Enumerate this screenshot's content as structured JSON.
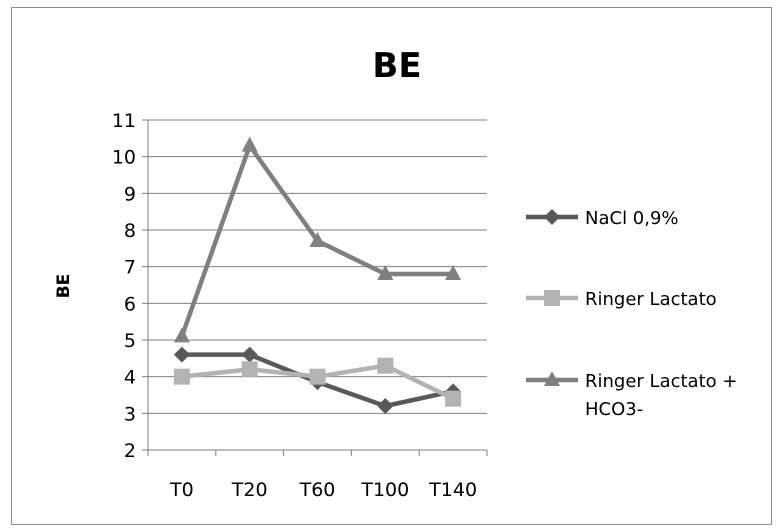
{
  "chart_data": {
    "type": "line",
    "title": "BE",
    "ylabel": "BE",
    "xlabel": "",
    "categories": [
      "T0",
      "T20",
      "T60",
      "T100",
      "T140"
    ],
    "ylim": [
      2,
      11
    ],
    "yticks": [
      2,
      3,
      4,
      5,
      6,
      7,
      8,
      9,
      10,
      11
    ],
    "grid": true,
    "legend_position": "right",
    "series": [
      {
        "name": "NaCl 0,9%",
        "values": [
          4.6,
          4.6,
          3.85,
          3.2,
          3.6
        ],
        "color": "#595959",
        "marker": "diamond"
      },
      {
        "name": "Ringer Lactato",
        "values": [
          4.0,
          4.2,
          4.0,
          4.3,
          3.4
        ],
        "color": "#b3b3b3",
        "marker": "square"
      },
      {
        "name": "Ringer Lactato + HCO3-",
        "values": [
          5.1,
          10.3,
          7.7,
          6.8,
          6.8
        ],
        "color": "#808080",
        "marker": "triangle"
      }
    ]
  }
}
